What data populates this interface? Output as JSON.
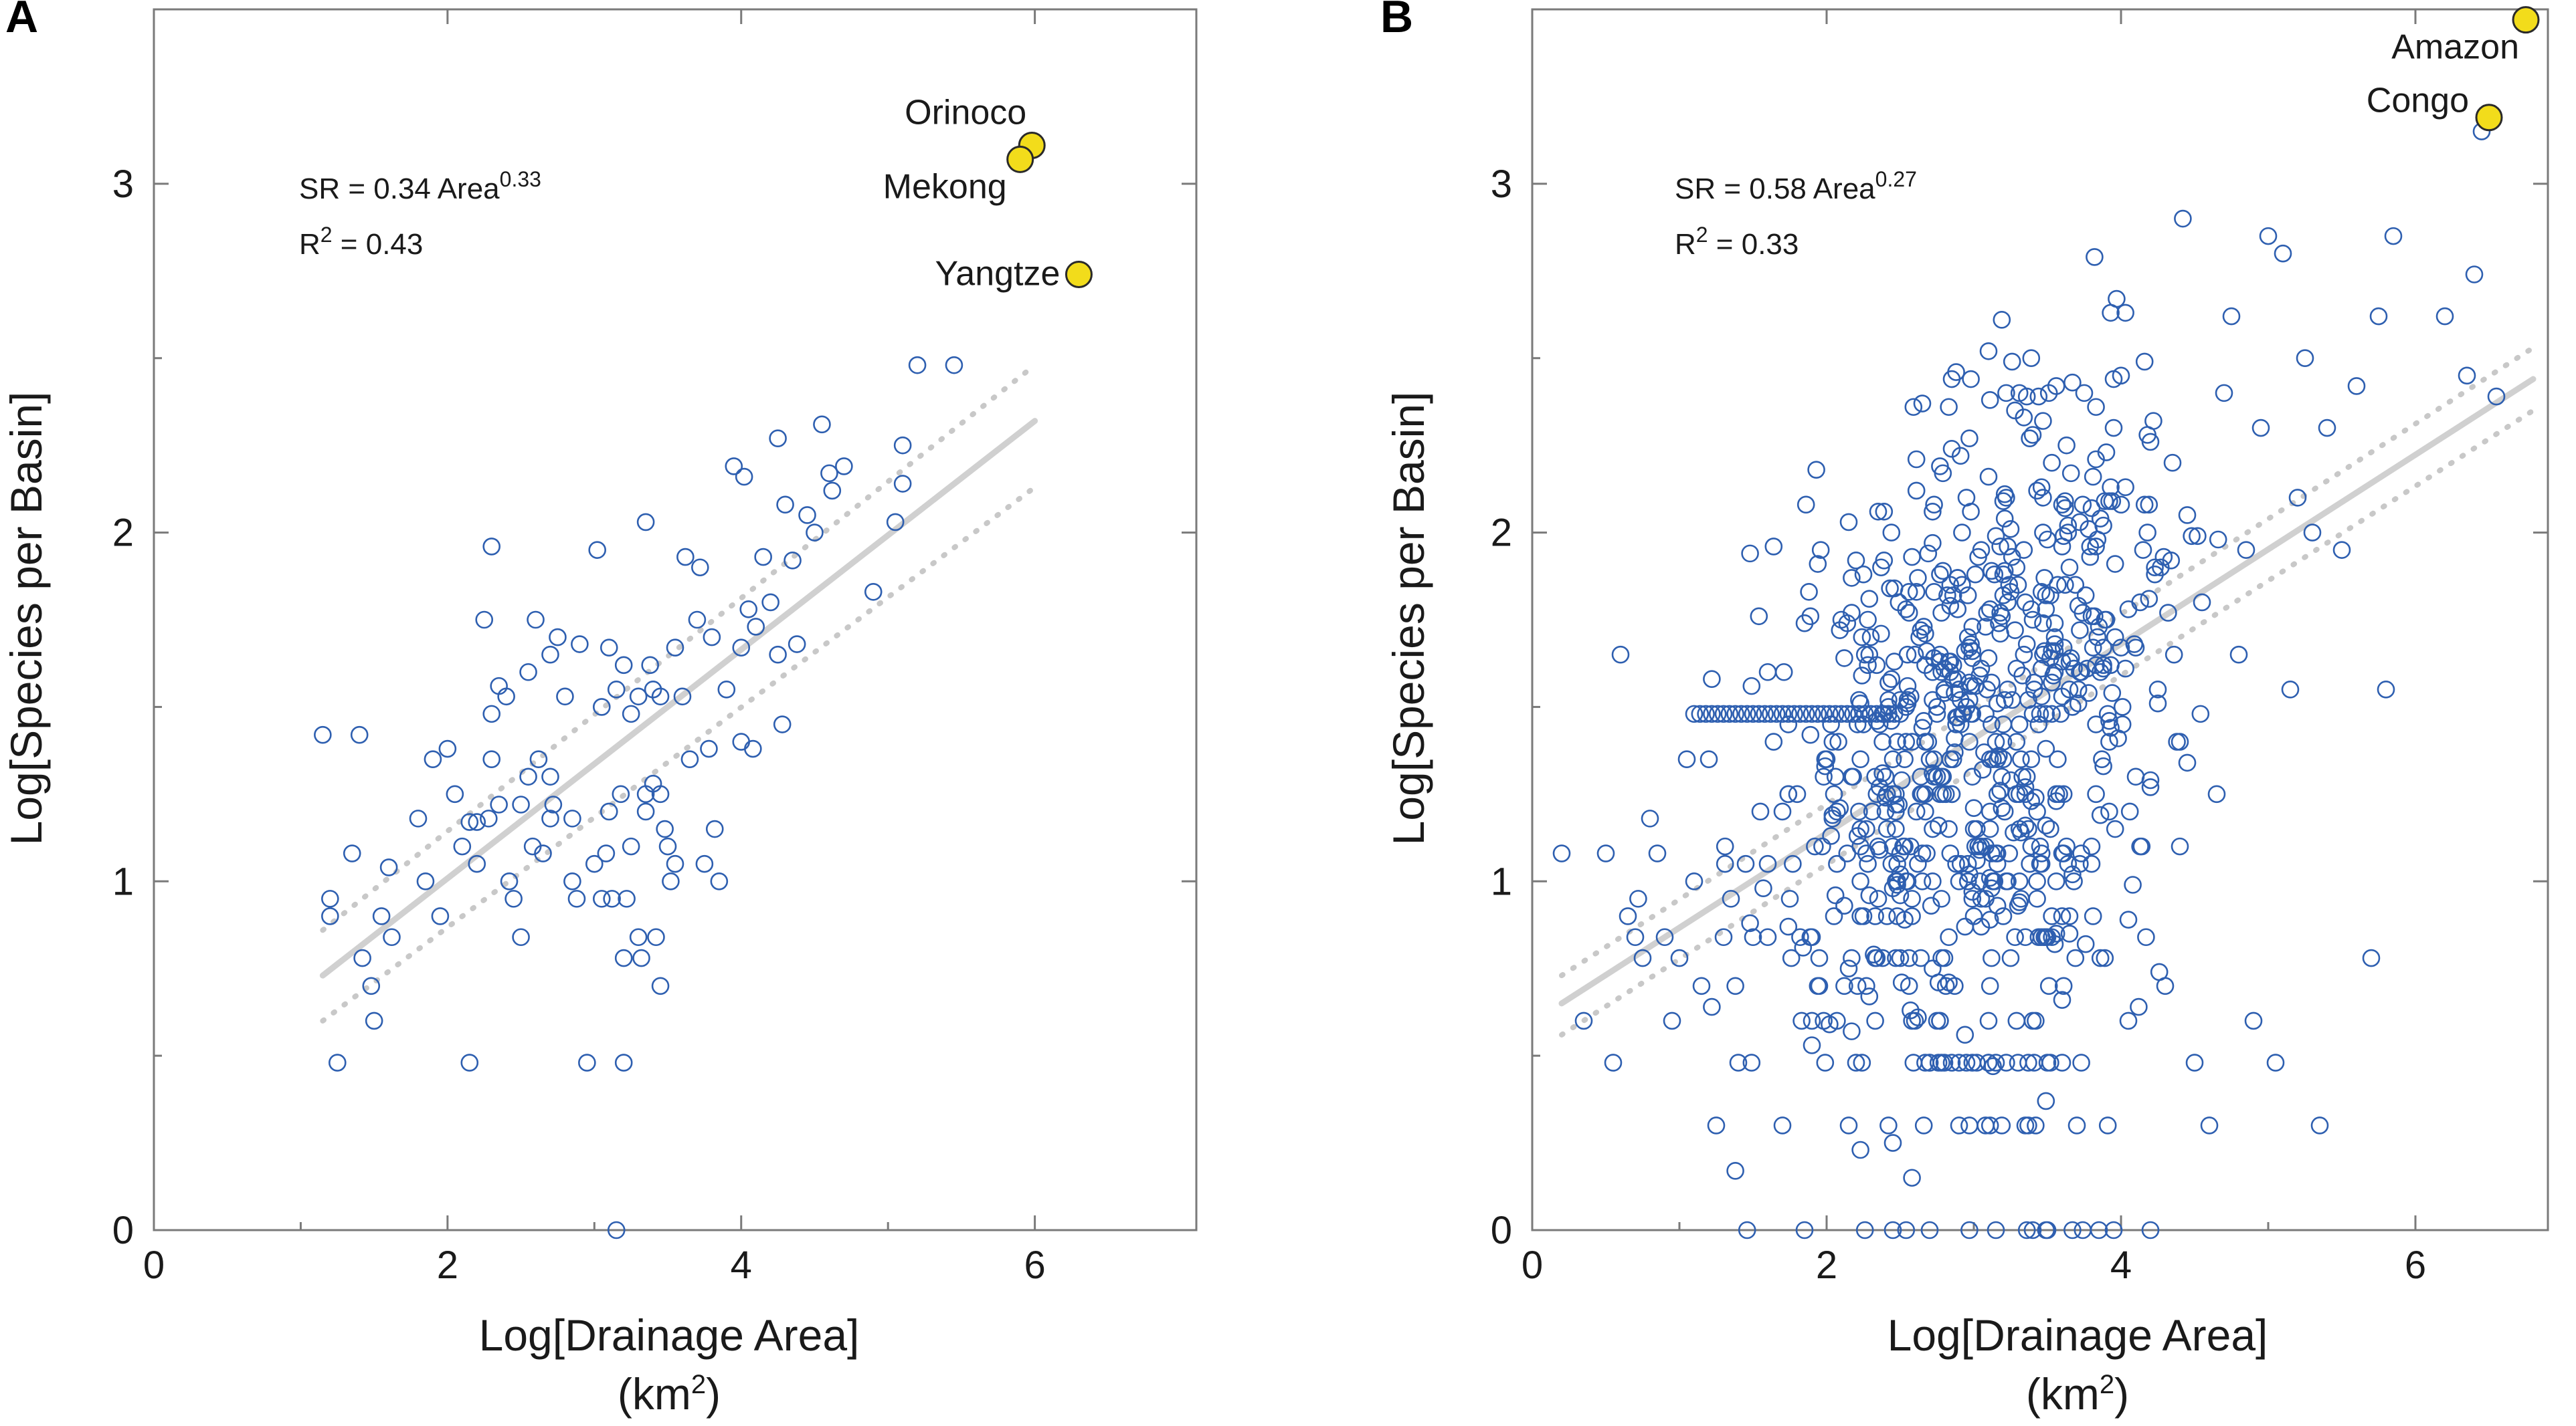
{
  "chart_data": [
    {
      "panel": "A",
      "type": "scatter",
      "xlabel": "Log[Drainage Area]",
      "xunit": [
        "(km",
        "2",
        ")"
      ],
      "ylabel": "Log[Species per Basin]",
      "xlim": [
        0,
        7.1
      ],
      "ylim": [
        0,
        3.5
      ],
      "xticks": [
        0,
        2,
        4,
        6
      ],
      "yticks": [
        0,
        1,
        2,
        3
      ],
      "equation": [
        "SR = 0.34 Area",
        "0.33"
      ],
      "r2": [
        "R",
        "2",
        " = 0.43"
      ],
      "fit": {
        "x": [
          1.15,
          6.0
        ],
        "y": [
          0.73,
          2.32
        ]
      },
      "ci_upper": {
        "x": [
          1.15,
          6.0
        ],
        "y": [
          0.86,
          2.48
        ]
      },
      "ci_lower": {
        "x": [
          1.15,
          6.0
        ],
        "y": [
          0.6,
          2.13
        ]
      },
      "highlights": [
        {
          "name": "Orinoco",
          "x": 5.98,
          "y": 3.11
        },
        {
          "name": "Mekong",
          "x": 5.9,
          "y": 3.07
        },
        {
          "name": "Yangtze",
          "x": 6.3,
          "y": 2.74
        }
      ],
      "points": [
        [
          1.15,
          1.42
        ],
        [
          1.2,
          0.95
        ],
        [
          1.2,
          0.9
        ],
        [
          1.25,
          0.48
        ],
        [
          1.35,
          1.08
        ],
        [
          1.4,
          1.42
        ],
        [
          1.42,
          0.78
        ],
        [
          1.48,
          0.7
        ],
        [
          1.5,
          0.6
        ],
        [
          1.55,
          0.9
        ],
        [
          1.6,
          1.04
        ],
        [
          1.62,
          0.84
        ],
        [
          1.8,
          1.18
        ],
        [
          1.85,
          1.0
        ],
        [
          1.9,
          1.35
        ],
        [
          1.95,
          0.9
        ],
        [
          2.0,
          1.38
        ],
        [
          2.05,
          1.25
        ],
        [
          2.1,
          1.1
        ],
        [
          2.15,
          1.17
        ],
        [
          2.15,
          0.48
        ],
        [
          2.2,
          1.17
        ],
        [
          2.2,
          1.05
        ],
        [
          2.25,
          1.75
        ],
        [
          2.28,
          1.18
        ],
        [
          2.3,
          1.96
        ],
        [
          2.3,
          1.48
        ],
        [
          2.3,
          1.35
        ],
        [
          2.35,
          1.56
        ],
        [
          2.35,
          1.22
        ],
        [
          2.4,
          1.53
        ],
        [
          2.42,
          1.0
        ],
        [
          2.45,
          0.95
        ],
        [
          2.5,
          1.22
        ],
        [
          2.5,
          0.84
        ],
        [
          2.55,
          1.6
        ],
        [
          2.55,
          1.3
        ],
        [
          2.58,
          1.1
        ],
        [
          2.6,
          1.75
        ],
        [
          2.62,
          1.35
        ],
        [
          2.65,
          1.08
        ],
        [
          2.7,
          1.65
        ],
        [
          2.7,
          1.3
        ],
        [
          2.7,
          1.18
        ],
        [
          2.72,
          1.22
        ],
        [
          2.75,
          1.7
        ],
        [
          2.8,
          1.53
        ],
        [
          2.85,
          1.18
        ],
        [
          2.85,
          1.0
        ],
        [
          2.88,
          0.95
        ],
        [
          2.9,
          1.68
        ],
        [
          2.95,
          0.48
        ],
        [
          3.0,
          1.05
        ],
        [
          3.02,
          1.95
        ],
        [
          3.05,
          1.5
        ],
        [
          3.05,
          0.95
        ],
        [
          3.08,
          1.08
        ],
        [
          3.1,
          1.67
        ],
        [
          3.1,
          1.2
        ],
        [
          3.12,
          0.95
        ],
        [
          3.15,
          1.55
        ],
        [
          3.15,
          0.0
        ],
        [
          3.18,
          1.25
        ],
        [
          3.2,
          1.62
        ],
        [
          3.2,
          0.48
        ],
        [
          3.2,
          0.78
        ],
        [
          3.22,
          0.95
        ],
        [
          3.25,
          1.48
        ],
        [
          3.25,
          1.1
        ],
        [
          3.3,
          1.53
        ],
        [
          3.3,
          0.84
        ],
        [
          3.32,
          0.78
        ],
        [
          3.35,
          2.03
        ],
        [
          3.35,
          1.25
        ],
        [
          3.35,
          1.2
        ],
        [
          3.38,
          1.62
        ],
        [
          3.4,
          1.55
        ],
        [
          3.4,
          1.28
        ],
        [
          3.42,
          0.84
        ],
        [
          3.45,
          1.53
        ],
        [
          3.45,
          1.25
        ],
        [
          3.45,
          0.7
        ],
        [
          3.48,
          1.15
        ],
        [
          3.5,
          1.1
        ],
        [
          3.52,
          1.0
        ],
        [
          3.55,
          1.67
        ],
        [
          3.55,
          1.05
        ],
        [
          3.6,
          1.53
        ],
        [
          3.62,
          1.93
        ],
        [
          3.65,
          1.35
        ],
        [
          3.7,
          1.75
        ],
        [
          3.72,
          1.9
        ],
        [
          3.75,
          1.05
        ],
        [
          3.78,
          1.38
        ],
        [
          3.8,
          1.7
        ],
        [
          3.82,
          1.15
        ],
        [
          3.85,
          1.0
        ],
        [
          3.9,
          1.55
        ],
        [
          3.95,
          2.19
        ],
        [
          4.0,
          1.67
        ],
        [
          4.0,
          1.4
        ],
        [
          4.02,
          2.16
        ],
        [
          4.05,
          1.78
        ],
        [
          4.08,
          1.38
        ],
        [
          4.1,
          1.73
        ],
        [
          4.15,
          1.93
        ],
        [
          4.2,
          1.8
        ],
        [
          4.25,
          2.27
        ],
        [
          4.25,
          1.65
        ],
        [
          4.28,
          1.45
        ],
        [
          4.3,
          2.08
        ],
        [
          4.35,
          1.92
        ],
        [
          4.38,
          1.68
        ],
        [
          4.45,
          2.05
        ],
        [
          4.5,
          2.0
        ],
        [
          4.55,
          2.31
        ],
        [
          4.6,
          2.17
        ],
        [
          4.62,
          2.12
        ],
        [
          4.7,
          2.19
        ],
        [
          4.9,
          1.83
        ],
        [
          5.05,
          2.03
        ],
        [
          5.1,
          2.25
        ],
        [
          5.1,
          2.14
        ],
        [
          5.2,
          2.48
        ],
        [
          5.45,
          2.48
        ]
      ]
    },
    {
      "panel": "B",
      "type": "scatter",
      "xlabel": "Log[Drainage Area]",
      "xunit": [
        "(km",
        "2",
        ")"
      ],
      "ylabel": "Log[Species per Basin]",
      "xlim": [
        0,
        6.9
      ],
      "ylim": [
        0,
        3.5
      ],
      "xticks": [
        0,
        2,
        4,
        6
      ],
      "yticks": [
        0,
        1,
        2,
        3
      ],
      "equation": [
        "SR = 0.58 Area",
        "0.27"
      ],
      "r2": [
        "R",
        "2",
        " = 0.33"
      ],
      "fit": {
        "x": [
          0.2,
          6.8
        ],
        "y": [
          0.65,
          2.44
        ]
      },
      "ci_upper": {
        "x": [
          0.2,
          6.8
        ],
        "y": [
          0.73,
          2.53
        ]
      },
      "ci_lower": {
        "x": [
          0.2,
          6.8
        ],
        "y": [
          0.56,
          2.35
        ]
      },
      "highlights": [
        {
          "name": "Amazon",
          "x": 6.75,
          "y": 3.47
        },
        {
          "name": "Congo",
          "x": 6.5,
          "y": 3.19
        }
      ],
      "points": [
        [
          0.2,
          1.08
        ],
        [
          0.35,
          0.6
        ],
        [
          0.5,
          1.08
        ],
        [
          0.55,
          0.48
        ],
        [
          0.6,
          1.65
        ],
        [
          0.65,
          0.9
        ],
        [
          0.7,
          0.84
        ],
        [
          0.72,
          0.95
        ],
        [
          0.75,
          0.78
        ],
        [
          0.8,
          1.18
        ],
        [
          0.85,
          1.08
        ],
        [
          0.9,
          0.84
        ],
        [
          0.95,
          0.6
        ],
        [
          1.0,
          0.78
        ],
        [
          1.05,
          1.35
        ],
        [
          1.1,
          1.0
        ],
        [
          1.15,
          0.7
        ],
        [
          1.2,
          1.35
        ],
        [
          1.25,
          0.3
        ],
        [
          1.3,
          0.84
        ],
        [
          1.35,
          0.95
        ],
        [
          1.4,
          0.48
        ],
        [
          1.45,
          1.05
        ],
        [
          1.5,
          0.84
        ],
        [
          1.55,
          1.2
        ],
        [
          1.6,
          0.84
        ],
        [
          1.7,
          0.3
        ],
        [
          1.75,
          0.95
        ],
        [
          1.8,
          1.25
        ],
        [
          1.85,
          0.0
        ],
        [
          1.9,
          0.6
        ],
        [
          1.95,
          0.7
        ],
        [
          2.0,
          1.35
        ],
        [
          2.05,
          0.9
        ],
        [
          2.1,
          1.75
        ],
        [
          2.15,
          0.3
        ],
        [
          2.2,
          0.48
        ],
        [
          2.25,
          1.45
        ],
        [
          2.3,
          1.7
        ],
        [
          2.35,
          2.06
        ],
        [
          2.4,
          1.2
        ],
        [
          2.45,
          0.0
        ],
        [
          2.5,
          0.78
        ],
        [
          2.55,
          1.65
        ],
        [
          2.6,
          0.6
        ],
        [
          2.65,
          1.08
        ],
        [
          2.7,
          0.0
        ],
        [
          2.75,
          1.5
        ],
        [
          2.8,
          0.48
        ],
        [
          2.85,
          1.25
        ],
        [
          2.9,
          0.3
        ],
        [
          2.95,
          2.1
        ],
        [
          3.0,
          0.9
        ],
        [
          3.05,
          1.95
        ],
        [
          3.1,
          0.6
        ],
        [
          3.15,
          0.0
        ],
        [
          3.2,
          1.35
        ],
        [
          3.25,
          0.78
        ],
        [
          3.3,
          1.85
        ],
        [
          3.35,
          0.3
        ],
        [
          3.4,
          2.28
        ],
        [
          3.45,
          1.1
        ],
        [
          3.5,
          0.0
        ],
        [
          3.55,
          1.6
        ],
        [
          3.6,
          0.48
        ],
        [
          3.65,
          1.9
        ],
        [
          3.7,
          0.3
        ],
        [
          3.75,
          2.4
        ],
        [
          3.8,
          1.05
        ],
        [
          3.85,
          0.0
        ],
        [
          3.9,
          1.75
        ],
        [
          3.95,
          2.3
        ],
        [
          4.0,
          2.45
        ],
        [
          4.05,
          0.6
        ],
        [
          4.1,
          1.3
        ],
        [
          4.15,
          1.95
        ],
        [
          4.2,
          0.0
        ],
        [
          4.25,
          1.55
        ],
        [
          4.3,
          0.7
        ],
        [
          4.35,
          2.2
        ],
        [
          4.4,
          1.4
        ],
        [
          4.45,
          2.05
        ],
        [
          4.5,
          0.48
        ],
        [
          4.55,
          1.8
        ],
        [
          4.6,
          0.3
        ],
        [
          4.65,
          1.25
        ],
        [
          4.7,
          2.4
        ],
        [
          4.75,
          2.62
        ],
        [
          4.8,
          1.65
        ],
        [
          4.85,
          1.95
        ],
        [
          4.9,
          0.6
        ],
        [
          4.95,
          2.3
        ],
        [
          5.0,
          2.85
        ],
        [
          5.05,
          0.48
        ],
        [
          5.1,
          2.8
        ],
        [
          5.15,
          1.55
        ],
        [
          5.2,
          2.1
        ],
        [
          5.25,
          2.5
        ],
        [
          5.3,
          2.0
        ],
        [
          5.35,
          0.3
        ],
        [
          5.4,
          2.3
        ],
        [
          5.5,
          1.95
        ],
        [
          5.6,
          2.42
        ],
        [
          5.7,
          0.78
        ],
        [
          5.75,
          2.62
        ],
        [
          5.8,
          1.55
        ],
        [
          5.85,
          2.85
        ],
        [
          6.2,
          2.62
        ],
        [
          6.35,
          2.45
        ],
        [
          6.4,
          2.74
        ],
        [
          6.45,
          3.15
        ],
        [
          6.55,
          2.39
        ]
      ],
      "dense_seed": 7
    }
  ]
}
